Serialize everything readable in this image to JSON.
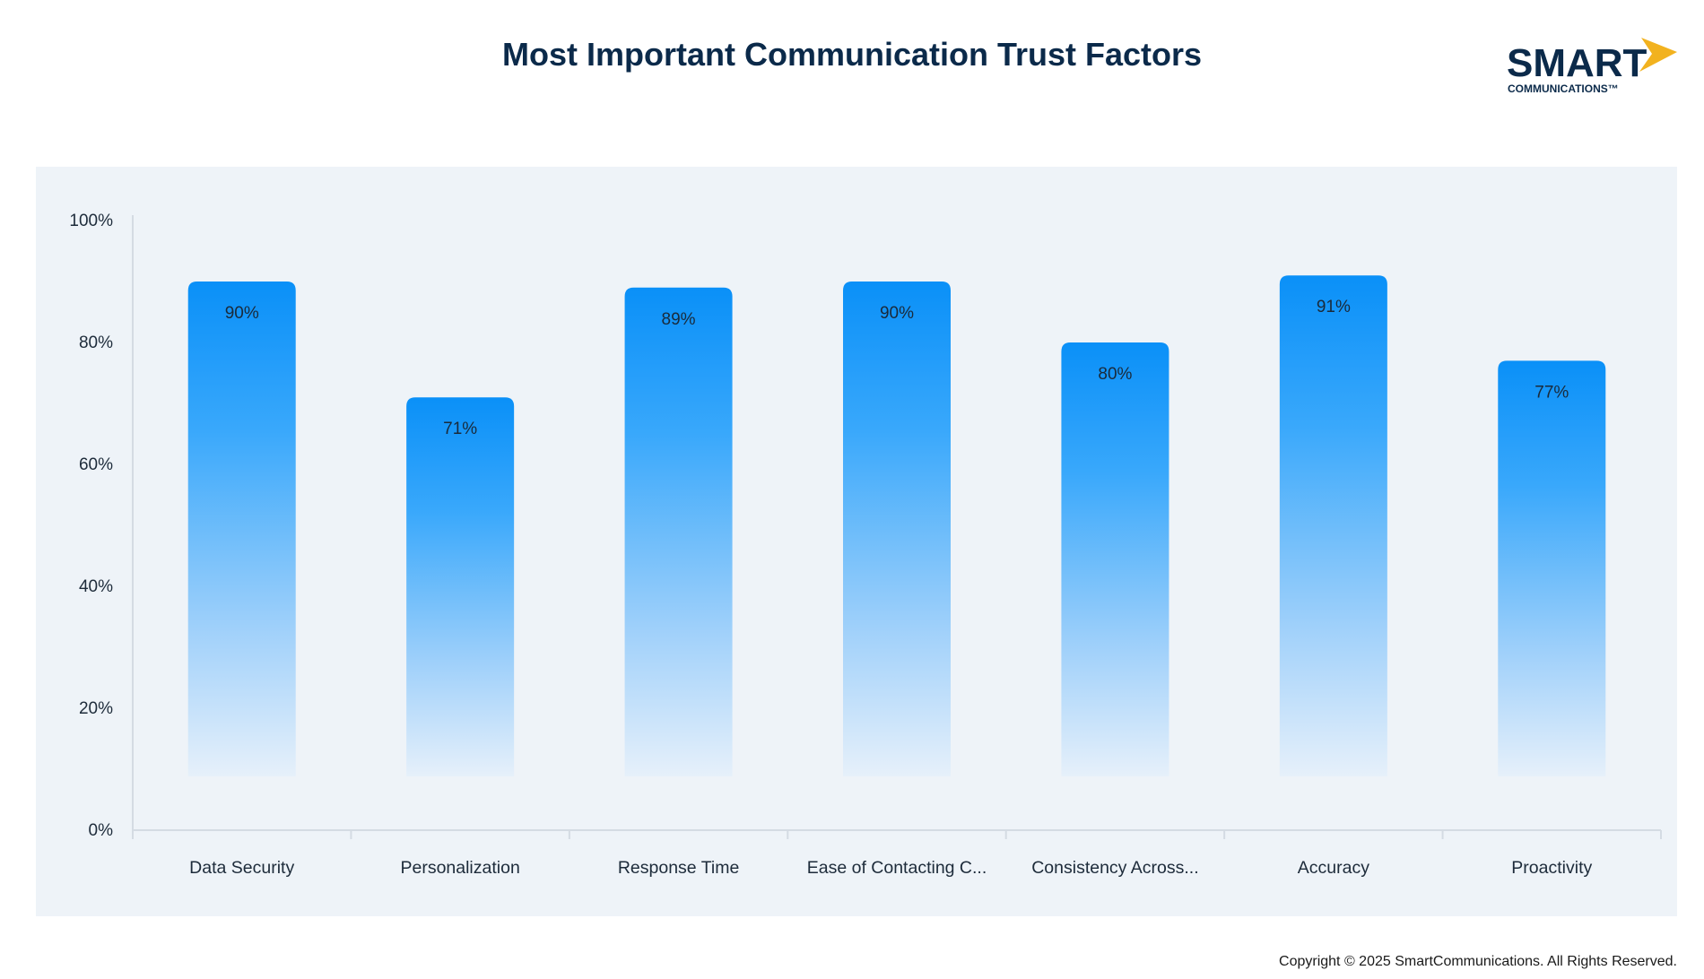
{
  "chart_data": {
    "type": "bar",
    "title": "Most Important Communication Trust Factors",
    "categories": [
      "Data Security",
      "Personalization",
      "Response Time",
      "Ease of Contacting C...",
      "Consistency Across...",
      "Accuracy",
      "Proactivity"
    ],
    "values": [
      90,
      71,
      89,
      90,
      80,
      91,
      77
    ],
    "value_labels": [
      "90%",
      "71%",
      "89%",
      "90%",
      "80%",
      "91%",
      "77%"
    ],
    "ylim": [
      0,
      100
    ],
    "yticks": [
      0,
      20,
      40,
      60,
      80,
      100
    ],
    "ytick_labels": [
      "0%",
      "20%",
      "40%",
      "60%",
      "80%",
      "100%"
    ],
    "xlabel": "",
    "ylabel": "",
    "grid": false,
    "colors": {
      "bar_top": "#0a90f8",
      "bar_bottom": "#e6f0fa",
      "axis": "#d4dbe3",
      "tick_text": "#1d2b3a"
    }
  },
  "brand": {
    "name": "SMART",
    "sub": "COMMUNICATIONS™",
    "name_color": "#0b2a4a",
    "accent": "#f2b21f"
  },
  "footer": {
    "copyright": "Copyright © 2025 SmartCommunications. All Rights Reserved."
  }
}
